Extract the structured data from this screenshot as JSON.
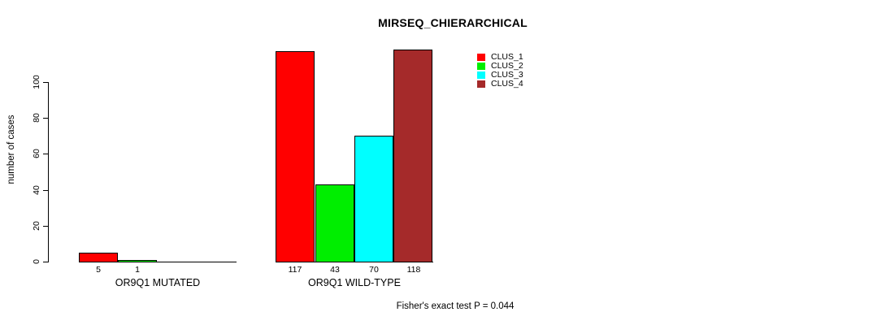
{
  "chart_data": {
    "type": "bar",
    "title": "MIRSEQ_CHIERARCHICAL",
    "ylabel": "number of cases",
    "xlabel": "",
    "categories": [
      "OR9Q1 MUTATED",
      "OR9Q1 WILD-TYPE"
    ],
    "series": [
      {
        "name": "CLUS_1",
        "color": "#FF0000",
        "values": [
          5,
          117
        ]
      },
      {
        "name": "CLUS_2",
        "color": "#00EE00",
        "values": [
          1,
          43
        ]
      },
      {
        "name": "CLUS_3",
        "color": "#00FFFF",
        "values": [
          0,
          70
        ]
      },
      {
        "name": "CLUS_4",
        "color": "#A52A2A",
        "values": [
          0,
          118
        ]
      }
    ],
    "yticks": [
      0,
      20,
      40,
      60,
      80,
      100
    ],
    "ylim": [
      0,
      118
    ],
    "grid": false,
    "legend_position": "top-right-inside",
    "bar_labels_note": "values printed under each nonzero bar",
    "annotation": "Fisher's exact test P = 0.044",
    "axis_color": "#000000",
    "background_color": "#FFFFFF"
  }
}
